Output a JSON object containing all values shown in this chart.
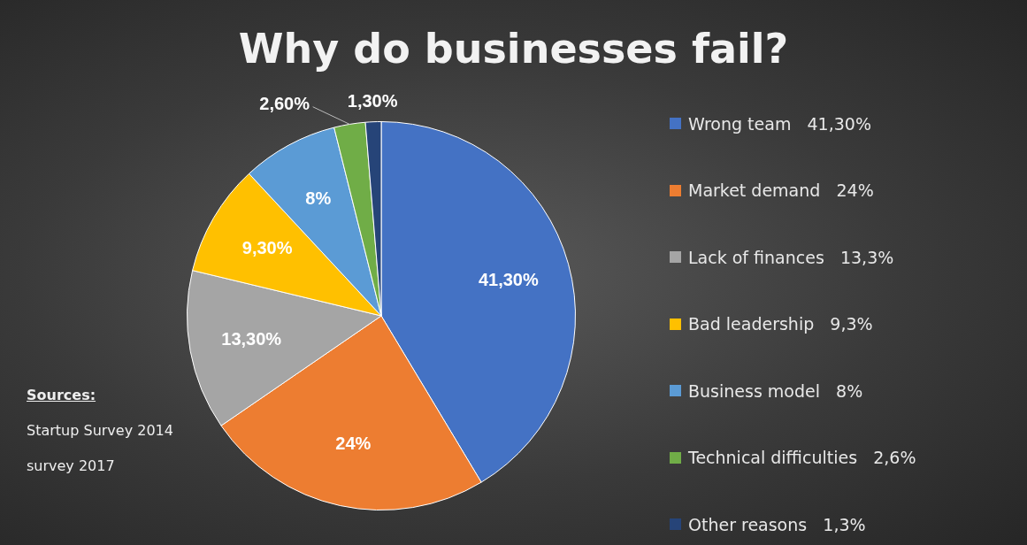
{
  "chart_data": {
    "type": "pie",
    "title": "Why do businesses fail?",
    "categories": [
      "Wrong team   41,30%",
      "Market demand   24%",
      "Lack of finances   13,3%",
      "Bad leadership   9,3%",
      "Business model   8%",
      "Technical difficulties   2,6%",
      "Other reasons   1,3%"
    ],
    "values": [
      41.3,
      24,
      13.3,
      9.3,
      8,
      2.6,
      1.3
    ],
    "value_labels": [
      "41,30%",
      "24%",
      "13,30%",
      "9,30%",
      "8%",
      "2,60%",
      "1,30%"
    ],
    "colors": [
      "#4472c4",
      "#ed7d31",
      "#a5a5a5",
      "#ffc000",
      "#5b9bd5",
      "#70ad47",
      "#264478"
    ],
    "legend": "right",
    "annotations": [
      "Sources:",
      "Startup Survey 2014",
      "survey 2017"
    ]
  }
}
